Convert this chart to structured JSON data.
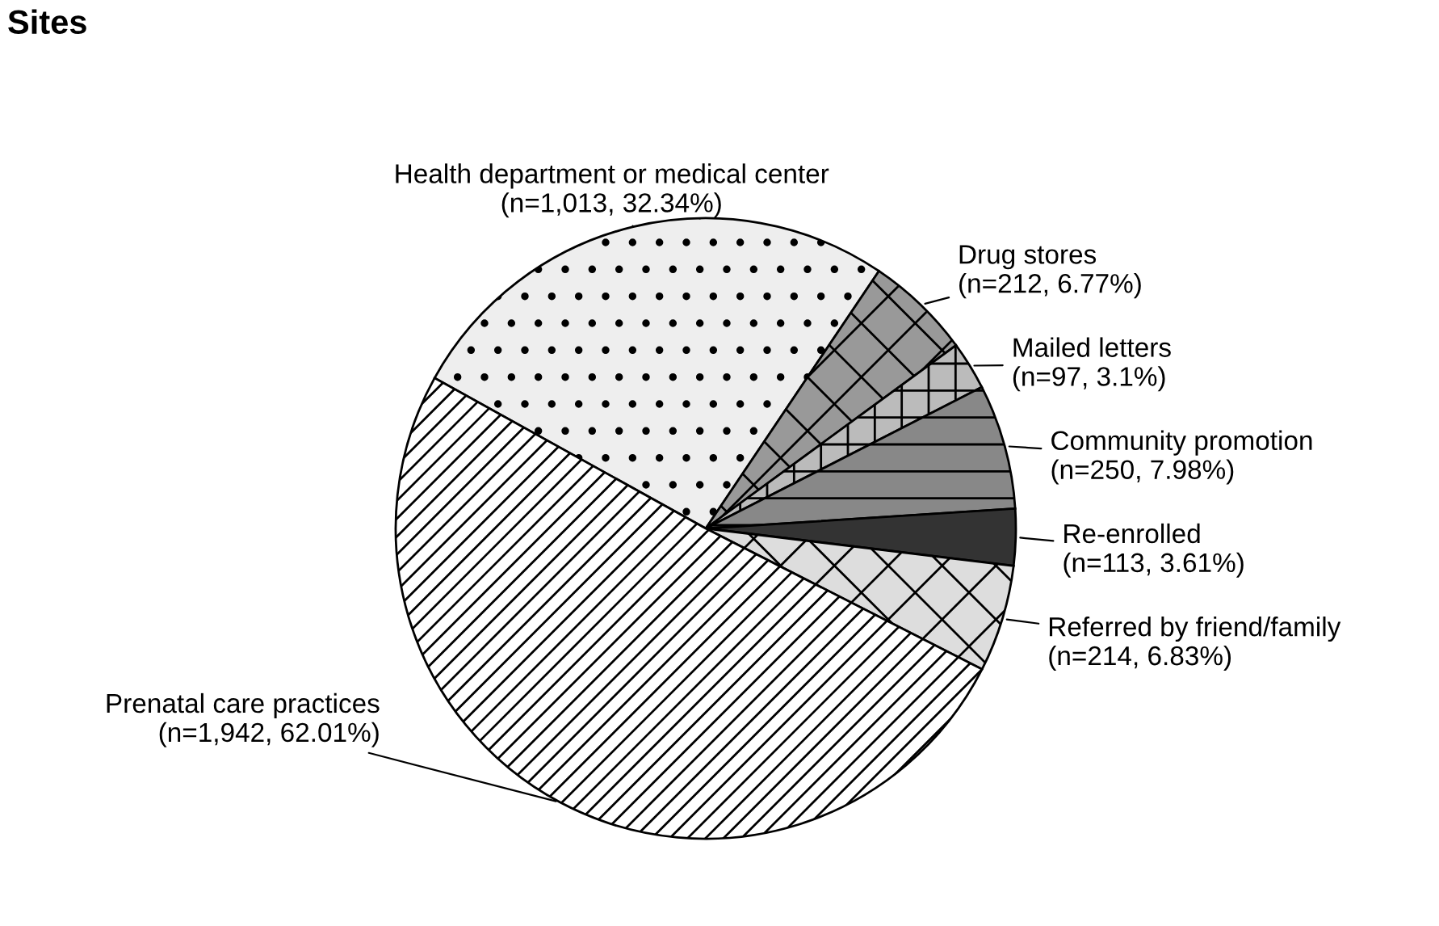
{
  "chart_data": {
    "type": "pie",
    "title": "Sites",
    "categories": [
      "Health department or medical center",
      "Drug stores",
      "Mailed letters",
      "Community promotion",
      "Re-enrolled",
      "Referred by friend/family",
      "Prenatal care practices"
    ],
    "values": [
      1013,
      212,
      97,
      250,
      113,
      214,
      1942
    ],
    "value_labels": [
      "(n=1,013, 32.34%)",
      "(n=212, 6.77%)",
      "(n=97, 3.1%)",
      "(n=250, 7.98%)",
      "(n=113, 3.61%)",
      "(n=214, 6.83%)",
      "(n=1,942, 62.01%)"
    ],
    "colors": [
      "#eeeeee",
      "#999999",
      "#bbbbbb",
      "#888888",
      "#333333",
      "#dddddd",
      "#ffffff"
    ],
    "legend": false
  }
}
